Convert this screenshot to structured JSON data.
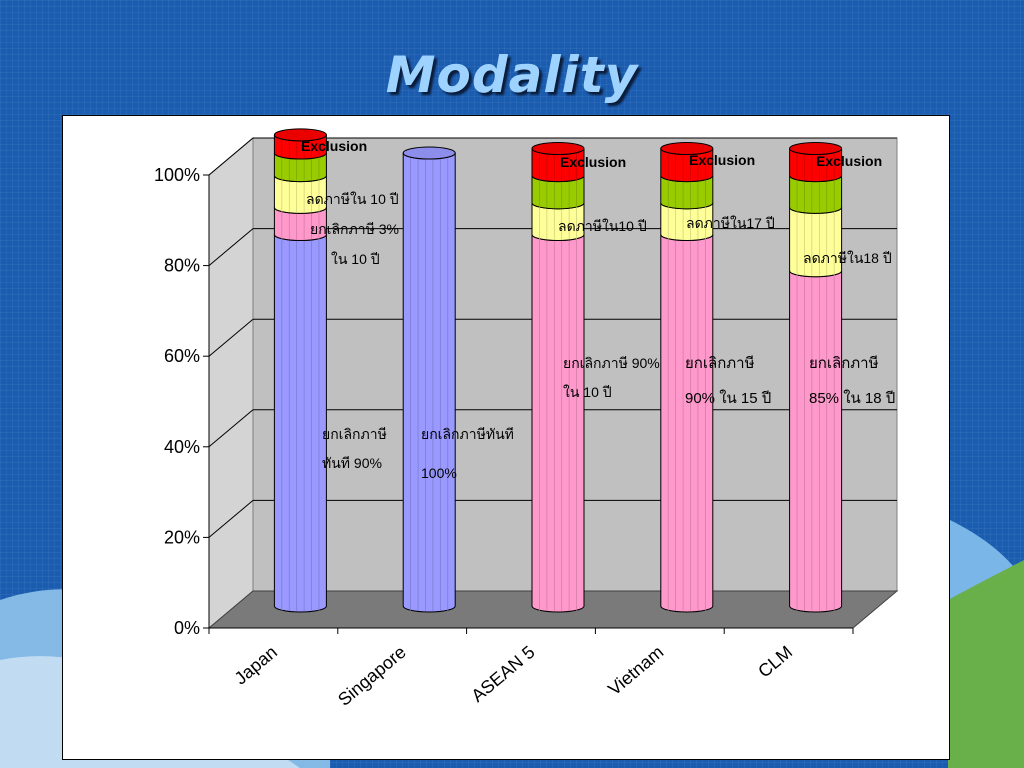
{
  "slide": {
    "title": "Modality"
  },
  "colors": {
    "exempt_japan_singapore": "#9999ff",
    "exempt_asean": "#ff99cc",
    "reduce": "#ffff99",
    "green": "#99cc00",
    "exclusion": "#ff0000"
  },
  "chart_data": {
    "type": "bar",
    "stacked": true,
    "three_d": true,
    "categories": [
      "Japan",
      "Singapore",
      "ASEAN 5",
      "Vietnam",
      "CLM"
    ],
    "y_ticks": [
      "0%",
      "20%",
      "40%",
      "60%",
      "80%",
      "100%"
    ],
    "ylim": [
      0,
      100
    ],
    "grid": true,
    "series": [
      {
        "values": [
          82,
          100,
          82,
          82,
          74
        ]
      },
      {
        "values": [
          6,
          0,
          7,
          7,
          14
        ]
      },
      {
        "values": [
          7,
          0,
          0,
          0,
          0
        ]
      },
      {
        "values": [
          5,
          0,
          6,
          6,
          7
        ]
      },
      {
        "values": [
          4,
          0,
          6,
          6,
          6
        ]
      }
    ],
    "annotations": [
      {
        "id": "japan_exclusion",
        "text": "Exclusion"
      },
      {
        "id": "japan_reduce",
        "text": "ลดภาษีใน 10 ปี"
      },
      {
        "id": "japan_exempt3_a",
        "text": "ยกเลิกภาษี 3%"
      },
      {
        "id": "japan_exempt3_b",
        "text": "ใน 10 ปี"
      },
      {
        "id": "japan_exempt90_a",
        "text": "ยกเลิกภาษี"
      },
      {
        "id": "japan_exempt90_b",
        "text": "ทันที 90%"
      },
      {
        "id": "singapore_a",
        "text": "ยกเลิกภาษีทันที"
      },
      {
        "id": "singapore_b",
        "text": "100%"
      },
      {
        "id": "asean_exclusion",
        "text": "Exclusion"
      },
      {
        "id": "asean_reduce",
        "text": "ลดภาษีใน10 ปี"
      },
      {
        "id": "asean_exempt_a",
        "text": "ยกเลิกภาษี 90%"
      },
      {
        "id": "asean_exempt_b",
        "text": "ใน 10 ปี"
      },
      {
        "id": "vietnam_exclusion",
        "text": "Exclusion"
      },
      {
        "id": "vietnam_reduce",
        "text": "ลดภาษีใน17 ปี"
      },
      {
        "id": "vietnam_exempt_a",
        "text": "ยกเลิกภาษี"
      },
      {
        "id": "vietnam_exempt_b",
        "text": "90% ใน 15 ปี"
      },
      {
        "id": "clm_exclusion",
        "text": "Exclusion"
      },
      {
        "id": "clm_reduce",
        "text": "ลดภาษีใน18 ปี"
      },
      {
        "id": "clm_exempt_a",
        "text": "ยกเลิกภาษี"
      },
      {
        "id": "clm_exempt_b",
        "text": "85% ใน 18 ปี"
      }
    ]
  }
}
